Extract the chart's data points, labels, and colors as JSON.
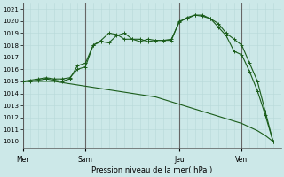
{
  "title": "Pression niveau de la mer( hPa )",
  "background_color": "#cce8e8",
  "grid_color_minor": "#b8d8d8",
  "grid_color_major": "#99bbbb",
  "line_color": "#1a5c1a",
  "ylim": [
    1009.5,
    1021.5
  ],
  "yticks": [
    1010,
    1011,
    1012,
    1013,
    1014,
    1015,
    1016,
    1017,
    1018,
    1019,
    1020,
    1021
  ],
  "day_labels": [
    "Mer",
    "Sam",
    "Jeu",
    "Ven"
  ],
  "day_positions": [
    0,
    8,
    20,
    28
  ],
  "xlim": [
    0,
    33
  ],
  "series1_x": [
    0,
    1,
    2,
    3,
    4,
    5,
    6,
    7,
    8,
    9,
    10,
    11,
    12,
    13,
    14,
    15,
    16,
    17,
    18,
    19,
    20,
    21,
    22,
    23,
    24,
    25,
    26,
    27,
    28,
    29,
    30,
    31,
    32
  ],
  "series1_y": [
    1015.0,
    1015.0,
    1015.0,
    1015.0,
    1015.0,
    1014.9,
    1014.8,
    1014.7,
    1014.6,
    1014.5,
    1014.4,
    1014.3,
    1014.2,
    1014.1,
    1014.0,
    1013.9,
    1013.8,
    1013.7,
    1013.5,
    1013.3,
    1013.1,
    1012.9,
    1012.7,
    1012.5,
    1012.3,
    1012.1,
    1011.9,
    1011.7,
    1011.5,
    1011.2,
    1010.9,
    1010.5,
    1010.0
  ],
  "series2_x": [
    0,
    1,
    2,
    3,
    4,
    5,
    6,
    7,
    8,
    9,
    10,
    11,
    12,
    13,
    14,
    15,
    16,
    17,
    18,
    19,
    20,
    21,
    22,
    23,
    24,
    25,
    26,
    27,
    28,
    29,
    30,
    31,
    32
  ],
  "series2_y": [
    1015.0,
    1015.1,
    1015.2,
    1015.3,
    1015.2,
    1015.2,
    1015.3,
    1016.0,
    1016.2,
    1018.0,
    1018.3,
    1018.2,
    1018.8,
    1019.0,
    1018.5,
    1018.5,
    1018.3,
    1018.4,
    1018.4,
    1018.4,
    1020.0,
    1020.2,
    1020.5,
    1020.5,
    1020.2,
    1019.8,
    1019.0,
    1018.5,
    1018.0,
    1016.5,
    1015.0,
    1012.5,
    1010.0
  ],
  "series3_x": [
    0,
    1,
    2,
    3,
    4,
    5,
    6,
    7,
    8,
    9,
    10,
    11,
    12,
    13,
    14,
    15,
    16,
    17,
    18,
    19,
    20,
    21,
    22,
    23,
    24,
    25,
    26,
    27,
    28,
    29,
    30,
    31,
    32
  ],
  "series3_y": [
    1015.0,
    1015.0,
    1015.1,
    1015.2,
    1015.1,
    1015.0,
    1015.2,
    1016.3,
    1016.5,
    1018.0,
    1018.4,
    1019.0,
    1018.9,
    1018.5,
    1018.5,
    1018.3,
    1018.5,
    1018.4,
    1018.4,
    1018.5,
    1019.9,
    1020.3,
    1020.5,
    1020.4,
    1020.2,
    1019.5,
    1018.8,
    1017.5,
    1017.2,
    1015.8,
    1014.2,
    1012.2,
    1010.0
  ]
}
